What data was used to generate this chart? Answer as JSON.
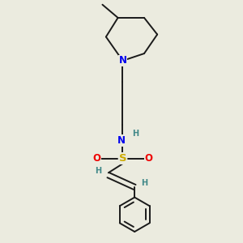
{
  "background_color": "#ebebdf",
  "bond_color": "#1a1a1a",
  "N_color": "#0000ee",
  "S_color": "#ccaa00",
  "O_color": "#ee0000",
  "H_color": "#408888",
  "line_width": 1.4,
  "font_size": 8.5,
  "fig_width": 3.0,
  "fig_height": 3.0,
  "dpi": 100,
  "xlim": [
    0,
    10
  ],
  "ylim": [
    0,
    10
  ]
}
